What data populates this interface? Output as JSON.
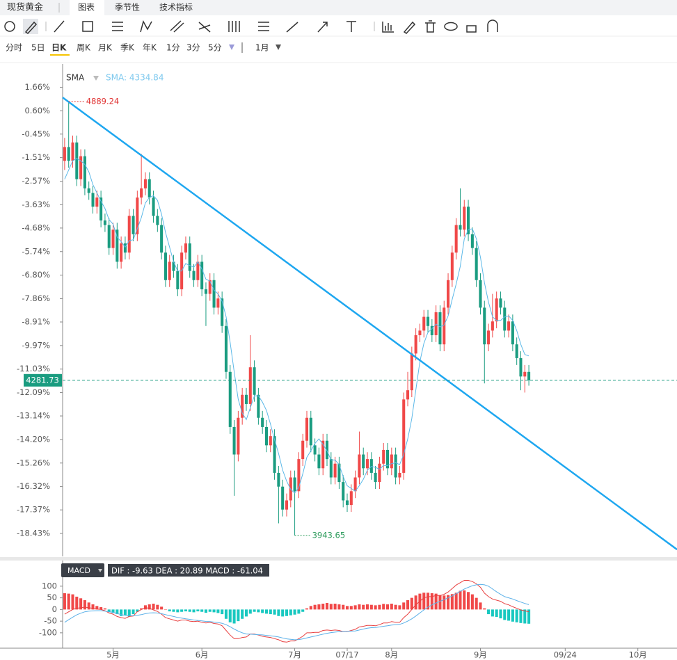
{
  "header": {
    "symbol": "现货黄金",
    "tabs": [
      "图表",
      "季节性",
      "技术指标"
    ]
  },
  "periods": [
    "分时",
    "5日",
    "日K",
    "周K",
    "月K",
    "季K",
    "年K",
    "1分",
    "3分",
    "5分"
  ],
  "range": "1月",
  "chart_data": {
    "type": "candlestick",
    "candles": [
      [
        4760,
        4810,
        4740,
        4790
      ],
      [
        4790,
        4889.24,
        4745,
        4760
      ],
      [
        4760,
        4815,
        4745,
        4800
      ],
      [
        4800,
        4815,
        4705,
        4720
      ],
      [
        4720,
        4785,
        4705,
        4770
      ],
      [
        4770,
        4785,
        4685,
        4700
      ],
      [
        4700,
        4715,
        4675,
        4690
      ],
      [
        4690,
        4705,
        4645,
        4660
      ],
      [
        4660,
        4695,
        4645,
        4680
      ],
      [
        4680,
        4695,
        4615,
        4630
      ],
      [
        4630,
        4645,
        4605,
        4620
      ],
      [
        4620,
        4635,
        4555,
        4570
      ],
      [
        4570,
        4625,
        4555,
        4610
      ],
      [
        4610,
        4625,
        4525,
        4540
      ],
      [
        4540,
        4595,
        4525,
        4580
      ],
      [
        4580,
        4595,
        4545,
        4560
      ],
      [
        4560,
        4655,
        4545,
        4640
      ],
      [
        4640,
        4655,
        4585,
        4600
      ],
      [
        4600,
        4695,
        4585,
        4680
      ],
      [
        4680,
        4775,
        4665,
        4700
      ],
      [
        4700,
        4735,
        4685,
        4720
      ],
      [
        4720,
        4735,
        4665,
        4680
      ],
      [
        4680,
        4695,
        4625,
        4640
      ],
      [
        4640,
        4655,
        4605,
        4620
      ],
      [
        4620,
        4635,
        4545,
        4560
      ],
      [
        4560,
        4575,
        4485,
        4500
      ],
      [
        4500,
        4555,
        4485,
        4540
      ],
      [
        4540,
        4555,
        4505,
        4520
      ],
      [
        4520,
        4535,
        4465,
        4480
      ],
      [
        4480,
        4575,
        4465,
        4560
      ],
      [
        4560,
        4595,
        4545,
        4580
      ],
      [
        4580,
        4595,
        4505,
        4520
      ],
      [
        4520,
        4535,
        4485,
        4500
      ],
      [
        4500,
        4555,
        4485,
        4540
      ],
      [
        4540,
        4555,
        4465,
        4480
      ],
      [
        4480,
        4495,
        4400,
        4470
      ],
      [
        4470,
        4515,
        4455,
        4500
      ],
      [
        4500,
        4515,
        4425,
        4440
      ],
      [
        4440,
        4475,
        4425,
        4460
      ],
      [
        4460,
        4475,
        4385,
        4400
      ],
      [
        4400,
        4415,
        4285,
        4300
      ],
      [
        4300,
        4315,
        4165,
        4180
      ],
      [
        4180,
        4195,
        4030,
        4120
      ],
      [
        4120,
        4215,
        4105,
        4200
      ],
      [
        4200,
        4265,
        4185,
        4250
      ],
      [
        4250,
        4265,
        4215,
        4230
      ],
      [
        4230,
        4380,
        4215,
        4310
      ],
      [
        4310,
        4325,
        4235,
        4250
      ],
      [
        4250,
        4265,
        4185,
        4200
      ],
      [
        4200,
        4215,
        4165,
        4180
      ],
      [
        4180,
        4195,
        4125,
        4140
      ],
      [
        4140,
        4175,
        4125,
        4160
      ],
      [
        4160,
        4175,
        4065,
        4080
      ],
      [
        4080,
        4095,
        3970,
        4050
      ],
      [
        4050,
        4065,
        3985,
        4000
      ],
      [
        4000,
        4035,
        3985,
        4020
      ],
      [
        4020,
        4085,
        4005,
        4070
      ],
      [
        4070,
        4085,
        3943.65,
        4040
      ],
      [
        4040,
        4125,
        4025,
        4110
      ],
      [
        4110,
        4165,
        4095,
        4150
      ],
      [
        4150,
        4215,
        4135,
        4200
      ],
      [
        4200,
        4215,
        4125,
        4140
      ],
      [
        4140,
        4155,
        4105,
        4120
      ],
      [
        4120,
        4135,
        4075,
        4090
      ],
      [
        4090,
        4165,
        4075,
        4150
      ],
      [
        4150,
        4165,
        4095,
        4110
      ],
      [
        4110,
        4125,
        4055,
        4070
      ],
      [
        4070,
        4115,
        4055,
        4100
      ],
      [
        4100,
        4115,
        4045,
        4060
      ],
      [
        4060,
        4075,
        4005,
        4020
      ],
      [
        4020,
        4035,
        3995,
        4010
      ],
      [
        4010,
        4055,
        3995,
        4040
      ],
      [
        4040,
        4085,
        4025,
        4070
      ],
      [
        4070,
        4170,
        4055,
        4120
      ],
      [
        4120,
        4135,
        4075,
        4090
      ],
      [
        4090,
        4125,
        4075,
        4110
      ],
      [
        4110,
        4125,
        4065,
        4080
      ],
      [
        4080,
        4095,
        4045,
        4060
      ],
      [
        4060,
        4115,
        4045,
        4100
      ],
      [
        4100,
        4145,
        4085,
        4130
      ],
      [
        4130,
        4145,
        4075,
        4090
      ],
      [
        4090,
        4135,
        4075,
        4120
      ],
      [
        4120,
        4135,
        4055,
        4070
      ],
      [
        4070,
        4095,
        4055,
        4080
      ],
      [
        4080,
        4255,
        4065,
        4240
      ],
      [
        4240,
        4300,
        4225,
        4260
      ],
      [
        4260,
        4355,
        4245,
        4340
      ],
      [
        4340,
        4395,
        4325,
        4380
      ],
      [
        4380,
        4405,
        4365,
        4390
      ],
      [
        4390,
        4435,
        4375,
        4420
      ],
      [
        4420,
        4435,
        4385,
        4400
      ],
      [
        4400,
        4415,
        4365,
        4380
      ],
      [
        4380,
        4445,
        4365,
        4430
      ],
      [
        4430,
        4445,
        4345,
        4360
      ],
      [
        4360,
        4455,
        4345,
        4440
      ],
      [
        4440,
        4515,
        4425,
        4500
      ],
      [
        4500,
        4575,
        4485,
        4560
      ],
      [
        4560,
        4635,
        4545,
        4620
      ],
      [
        4620,
        4700,
        4595,
        4610
      ],
      [
        4610,
        4675,
        4595,
        4660
      ],
      [
        4660,
        4675,
        4585,
        4600
      ],
      [
        4600,
        4615,
        4555,
        4570
      ],
      [
        4570,
        4585,
        4485,
        4500
      ],
      [
        4500,
        4515,
        4425,
        4440
      ],
      [
        4440,
        4455,
        4275,
        4360
      ],
      [
        4360,
        4405,
        4345,
        4390
      ],
      [
        4390,
        4470,
        4375,
        4410
      ],
      [
        4410,
        4475,
        4395,
        4460
      ],
      [
        4460,
        4475,
        4425,
        4440
      ],
      [
        4440,
        4455,
        4375,
        4390
      ],
      [
        4390,
        4425,
        4375,
        4410
      ],
      [
        4410,
        4425,
        4345,
        4360
      ],
      [
        4360,
        4375,
        4315,
        4330
      ],
      [
        4330,
        4345,
        4260,
        4290
      ],
      [
        4290,
        4315,
        4255,
        4300
      ],
      [
        4300,
        4315,
        4270,
        4281.73
      ]
    ],
    "up_color": "#f04848",
    "down_color": "#1a9c80",
    "sma": {
      "name": "SMA",
      "legend": "SMA: 4334.84",
      "color": "#5bb8e8",
      "values": [
        4720,
        4740,
        4760,
        4765,
        4760,
        4752,
        4736,
        4708,
        4690,
        4672,
        4656,
        4632,
        4622,
        4594,
        4584,
        4572,
        4586,
        4588,
        4612,
        4636,
        4668,
        4680,
        4684,
        4674,
        4644,
        4604,
        4572,
        4540,
        4520,
        4520,
        4536,
        4532,
        4528,
        4540,
        4524,
        4502,
        4498,
        4478,
        4470,
        4454,
        4420,
        4364,
        4300,
        4240,
        4210,
        4196,
        4222,
        4248,
        4248,
        4234,
        4216,
        4186,
        4152,
        4122,
        4086,
        4062,
        4044,
        4036,
        4048,
        4078,
        4114,
        4128,
        4144,
        4154,
        4142,
        4128,
        4108,
        4108,
        4098,
        4072,
        4052,
        4046,
        4040,
        4052,
        4066,
        4086,
        4094,
        4092,
        4088,
        4096,
        4096,
        4100,
        4102,
        4098,
        4120,
        4154,
        4198,
        4260,
        4322,
        4362,
        4386,
        4394,
        4404,
        4398,
        4402,
        4422,
        4458,
        4492,
        4530,
        4590,
        4610,
        4612,
        4590,
        4550,
        4494,
        4452,
        4420,
        4412,
        4412,
        4420,
        4422,
        4412,
        4390,
        4360,
        4338,
        4334.84
      ]
    },
    "last_price": 4281.73,
    "trendline": {
      "color": "#1ea7f0",
      "points": [
        [
          -0.5,
          4898
        ],
        [
          151.7,
          3913
        ]
      ]
    },
    "ylim": [
      3898,
      4971
    ],
    "yticks": [
      {
        "value": 4920.34,
        "label": "1.66%"
      },
      {
        "value": 4869.04,
        "label": "0.60%"
      },
      {
        "value": 4818.22,
        "label": "-0.45%"
      },
      {
        "value": 4766.92,
        "label": "-1.51%"
      },
      {
        "value": 4715.61,
        "label": "-2.57%"
      },
      {
        "value": 4664.31,
        "label": "-3.63%"
      },
      {
        "value": 4613.49,
        "label": "-4.68%"
      },
      {
        "value": 4562.18,
        "label": "-5.74%"
      },
      {
        "value": 4510.88,
        "label": "-6.80%"
      },
      {
        "value": 4459.58,
        "label": "-7.86%"
      },
      {
        "value": 4408.76,
        "label": "-8.91%"
      },
      {
        "value": 4357.45,
        "label": "-9.97%"
      },
      {
        "value": 4306.15,
        "label": "-11.03%"
      },
      {
        "value": 4254.84,
        "label": "-12.09%"
      },
      {
        "value": 4204.02,
        "label": "-13.14%"
      },
      {
        "value": 4152.72,
        "label": "-14.20%"
      },
      {
        "value": 4101.42,
        "label": "-15.26%"
      },
      {
        "value": 4050.11,
        "label": "-16.32%"
      },
      {
        "value": 3999.29,
        "label": "-17.37%"
      },
      {
        "value": 3947.99,
        "label": "-18.43%"
      }
    ],
    "xlim": [
      -0.5,
      151.7
    ],
    "xticks": [
      {
        "value": 12,
        "label": "5月"
      },
      {
        "value": 34,
        "label": "6月"
      },
      {
        "value": 57,
        "label": "7月"
      },
      {
        "value": 70,
        "label": "07/17"
      },
      {
        "value": 81,
        "label": "8月"
      },
      {
        "value": 103,
        "label": "9月"
      },
      {
        "value": 124,
        "label": "09/24"
      },
      {
        "value": 142,
        "label": "10月"
      }
    ],
    "macd": {
      "name": "MACD",
      "legend": "DIF : -9.63   DEA : 20.89   MACD : -61.04",
      "ylim": [
        -160,
        210
      ],
      "yticks": [
        100,
        50,
        0,
        -50,
        -100
      ],
      "hist": [
        70,
        68,
        65,
        55,
        48,
        40,
        30,
        22,
        15,
        10,
        5,
        -10,
        -15,
        -20,
        -28,
        -25,
        -30,
        -20,
        -10,
        5,
        18,
        22,
        25,
        20,
        12,
        0,
        -8,
        -10,
        -12,
        -10,
        -8,
        -10,
        -12,
        -8,
        -10,
        -14,
        -10,
        -12,
        -15,
        -20,
        -40,
        -55,
        -60,
        -50,
        -40,
        -30,
        -18,
        -10,
        -12,
        -15,
        -18,
        -20,
        -22,
        -28,
        -30,
        -28,
        -25,
        -22,
        -18,
        -10,
        5,
        15,
        20,
        22,
        25,
        28,
        24,
        25,
        22,
        20,
        15,
        15,
        18,
        22,
        20,
        22,
        20,
        18,
        20,
        24,
        22,
        25,
        20,
        18,
        30,
        40,
        50,
        60,
        68,
        72,
        72,
        70,
        68,
        62,
        60,
        62,
        66,
        72,
        80,
        82,
        75,
        65,
        50,
        30,
        5,
        -20,
        -30,
        -32,
        -38,
        -45,
        -48,
        -52,
        -55,
        -58,
        -60,
        -61.04
      ],
      "hist_up": "#f04848",
      "hist_down": "#18c8c0",
      "series": [
        {
          "name": "DIF",
          "color": "#e84040",
          "values": [
            -20,
            -10,
            0,
            5,
            8,
            10,
            8,
            5,
            2,
            0,
            -5,
            -15,
            -20,
            -30,
            -35,
            -38,
            -30,
            -28,
            -10,
            0,
            8,
            5,
            -2,
            -8,
            -20,
            -35,
            -40,
            -45,
            -50,
            -45,
            -45,
            -50,
            -52,
            -50,
            -55,
            -58,
            -55,
            -60,
            -62,
            -70,
            -90,
            -110,
            -125,
            -125,
            -120,
            -118,
            -105,
            -105,
            -110,
            -115,
            -118,
            -120,
            -125,
            -130,
            -138,
            -140,
            -135,
            -135,
            -125,
            -115,
            -100,
            -100,
            -98,
            -98,
            -90,
            -88,
            -90,
            -88,
            -90,
            -95,
            -95,
            -90,
            -85,
            -75,
            -72,
            -68,
            -68,
            -70,
            -65,
            -58,
            -58,
            -52,
            -55,
            -55,
            -35,
            -20,
            0,
            20,
            35,
            50,
            55,
            55,
            60,
            60,
            65,
            75,
            90,
            105,
            115,
            125,
            125,
            120,
            110,
            95,
            70,
            55,
            45,
            40,
            35,
            25,
            20,
            12,
            5,
            -2,
            -6,
            -9.63
          ]
        },
        {
          "name": "DEA",
          "color": "#5ab0e8",
          "values": [
            -55,
            -44,
            -33,
            -23,
            -16,
            -10,
            -7,
            -6,
            -5,
            -5,
            -7,
            -10,
            -12,
            -17,
            -22,
            -25,
            -26,
            -27,
            -25,
            -22,
            -18,
            -15,
            -14,
            -15,
            -18,
            -22,
            -26,
            -30,
            -34,
            -37,
            -40,
            -42,
            -45,
            -47,
            -49,
            -51,
            -52,
            -54,
            -56,
            -59,
            -65,
            -74,
            -84,
            -93,
            -100,
            -105,
            -106,
            -107,
            -108,
            -109,
            -111,
            -113,
            -115,
            -118,
            -122,
            -126,
            -128,
            -130,
            -129,
            -126,
            -122,
            -118,
            -114,
            -110,
            -106,
            -102,
            -99,
            -97,
            -95,
            -95,
            -94,
            -93,
            -92,
            -88,
            -84,
            -80,
            -78,
            -77,
            -75,
            -72,
            -70,
            -67,
            -65,
            -64,
            -58,
            -50,
            -40,
            -28,
            -15,
            -2,
            10,
            20,
            28,
            35,
            42,
            50,
            58,
            68,
            78,
            88,
            95,
            102,
            106,
            108,
            106,
            100,
            88,
            76,
            65,
            55,
            50,
            45,
            38,
            32,
            26,
            20.89
          ]
        }
      ]
    }
  }
}
